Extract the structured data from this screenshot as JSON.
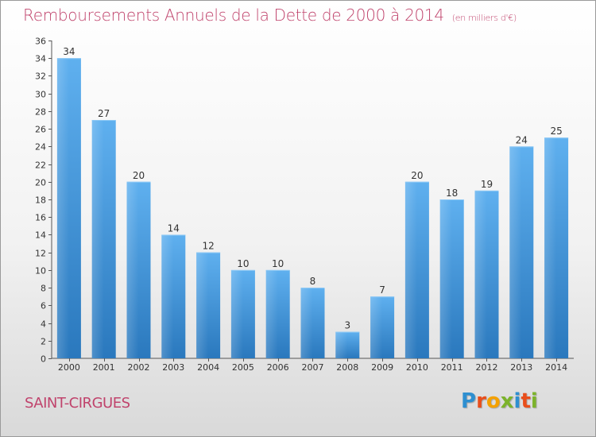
{
  "chart_data": {
    "type": "bar",
    "title": "Remboursements Annuels de la Dette de 2000 à 2014",
    "subtitle": "(en milliers d'€)",
    "categories": [
      "2000",
      "2001",
      "2002",
      "2003",
      "2004",
      "2005",
      "2006",
      "2007",
      "2008",
      "2009",
      "2010",
      "2011",
      "2012",
      "2013",
      "2014"
    ],
    "values": [
      34,
      27,
      20,
      14,
      12,
      10,
      10,
      8,
      3,
      7,
      20,
      18,
      19,
      24,
      25
    ],
    "ylim": [
      0,
      36
    ],
    "ytick_step": 2,
    "xlabel": "",
    "ylabel": "",
    "grid": false,
    "bar_color": "#3a8fd6"
  },
  "footer": {
    "city": "SAINT-CIRGUES",
    "brand": [
      "P",
      "r",
      "o",
      "x",
      "i",
      "t",
      "i"
    ]
  }
}
